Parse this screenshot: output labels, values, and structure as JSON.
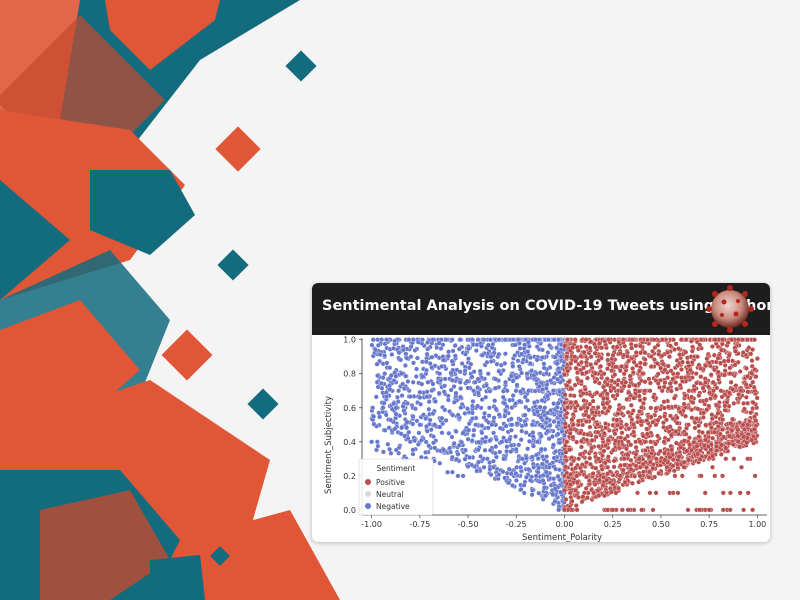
{
  "header": {
    "title": "Sentimental Analysis on COVID-19 Tweets using python",
    "icon": "coronavirus-icon"
  },
  "colors": {
    "positive": "#b84d4d",
    "neutral": "#d9d9d9",
    "negative": "#6677cc",
    "header_bg": "#1d1d1d",
    "decor_orange": "#e05636",
    "decor_teal": "#136b7e"
  },
  "chart_data": {
    "type": "scatter",
    "title": "",
    "xlabel": "Sentiment_Polarity",
    "ylabel": "Sentiment_Subjectivity",
    "xlim": [
      -1.05,
      1.05
    ],
    "ylim": [
      -0.03,
      1.01
    ],
    "x_ticks": [
      "-1.00",
      "-0.75",
      "-0.50",
      "-0.25",
      "0.00",
      "0.25",
      "0.50",
      "0.75",
      "1.00"
    ],
    "y_ticks": [
      "0.0",
      "0.2",
      "0.4",
      "0.6",
      "0.8",
      "1.0"
    ],
    "grid": false,
    "legend": {
      "title": "Sentiment",
      "position": "lower-left",
      "entries": [
        "Positive",
        "Neutral",
        "Negative"
      ]
    },
    "series": [
      {
        "name": "Positive",
        "region": {
          "x": [
            0.0,
            1.0
          ],
          "y": [
            0.0,
            1.0
          ]
        }
      },
      {
        "name": "Neutral",
        "region": {
          "x": [
            0.0,
            0.0
          ],
          "y": [
            0.0,
            0.0
          ]
        }
      },
      {
        "name": "Negative",
        "region": {
          "x": [
            -1.0,
            0.0
          ],
          "y": [
            0.0,
            1.0
          ]
        }
      }
    ]
  }
}
